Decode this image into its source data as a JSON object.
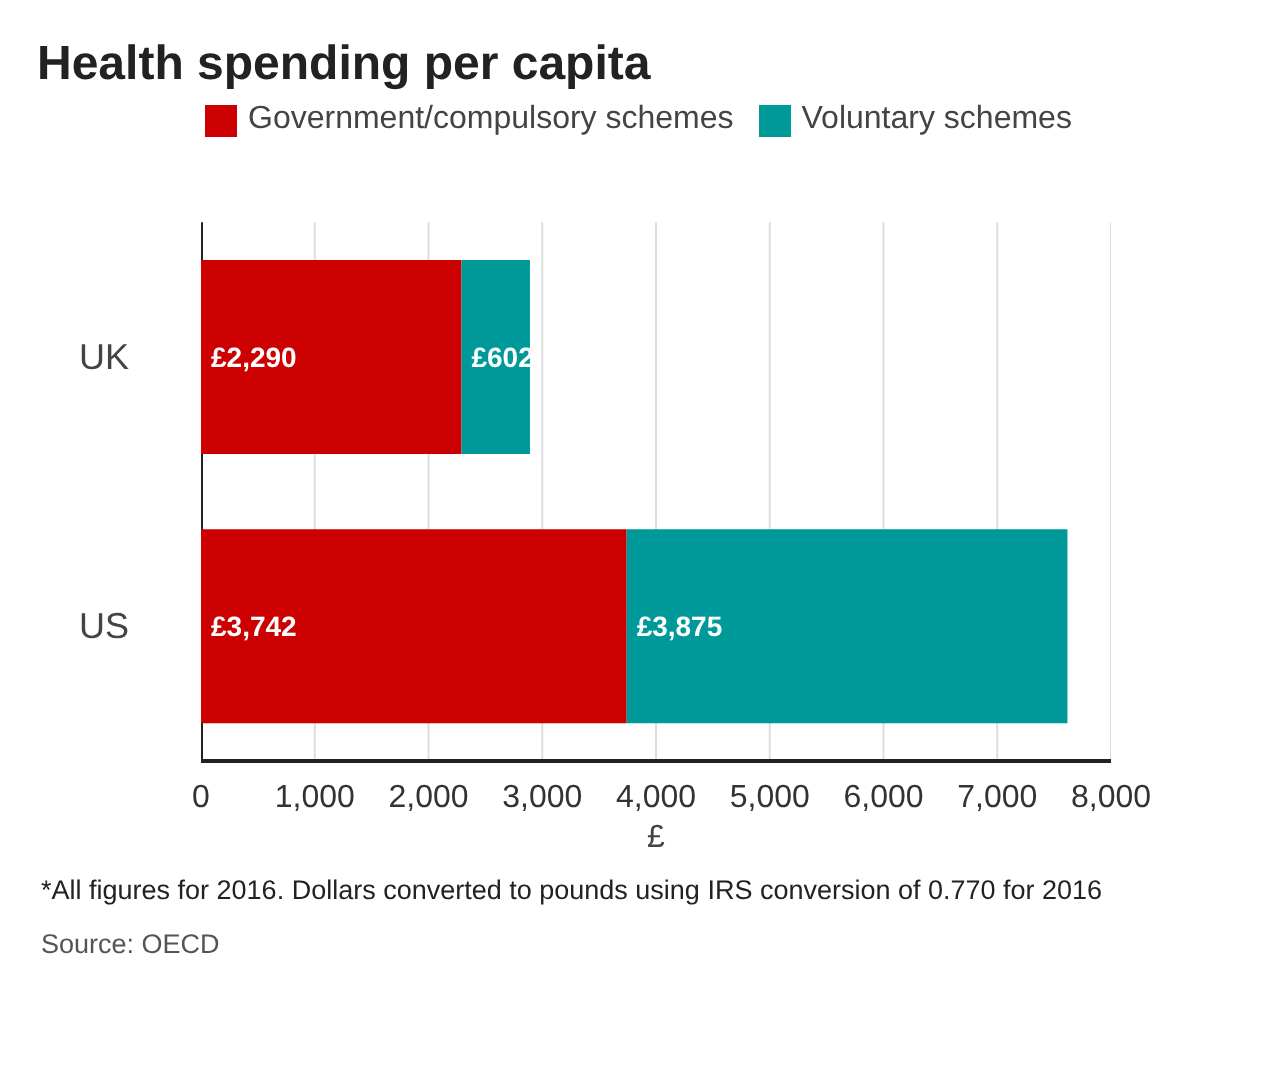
{
  "chart_data": {
    "type": "bar",
    "orientation": "horizontal",
    "stacked": true,
    "title": "Health spending per capita",
    "xlabel": "£",
    "categories": [
      "UK",
      "US"
    ],
    "series": [
      {
        "name": "Government/compulsory schemes",
        "color": "#cc0000",
        "values": [
          2290,
          3742
        ],
        "value_labels": [
          "£2,290",
          "£3,742"
        ]
      },
      {
        "name": "Voluntary schemes",
        "color": "#009999",
        "values": [
          602,
          3875
        ],
        "value_labels": [
          "£602",
          "£3,875"
        ]
      }
    ],
    "xlim": [
      0,
      8000
    ],
    "xticks": [
      0,
      {
        "value": 1000,
        "label": "1,000"
      },
      {
        "value": 2000,
        "label": "2,000"
      },
      {
        "value": 3000,
        "label": "3,000"
      },
      {
        "value": 4000,
        "label": "4,000"
      },
      {
        "value": 5000,
        "label": "5,000"
      },
      {
        "value": 6000,
        "label": "6,000"
      },
      {
        "value": 7000,
        "label": "7,000"
      },
      {
        "value": 8000,
        "label": "8,000"
      }
    ],
    "grid": "x",
    "legend": "top left",
    "annotations": [
      "*All figures for 2016. Dollars converted to pounds using IRS conversion of 0.770 for 2016",
      "Source: OECD"
    ]
  }
}
